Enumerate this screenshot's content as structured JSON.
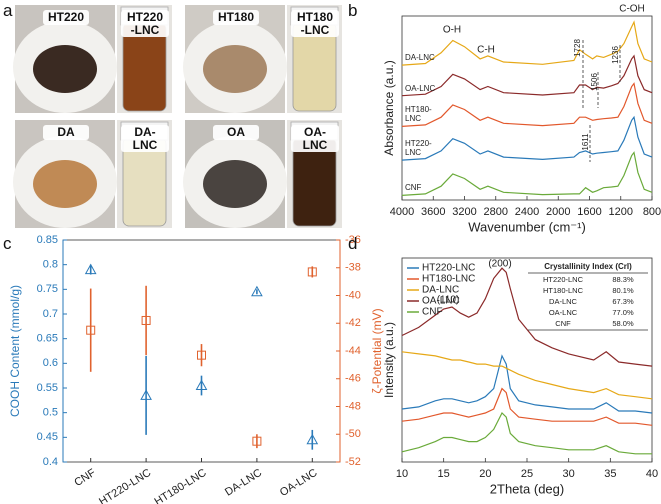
{
  "photos": {
    "panel_label": "a",
    "tiles": [
      {
        "sample": "HT220",
        "vial": "HT220\n-LNC"
      },
      {
        "sample": "HT180",
        "vial": "HT180\n-LNC"
      },
      {
        "sample": "DA",
        "vial": "DA-LNC"
      },
      {
        "sample": "OA",
        "vial": "OA-LNC"
      }
    ]
  },
  "chart_data": [
    {
      "type": "line",
      "panel_label": "b",
      "xlabel": "Wavenumber (cm⁻¹)",
      "ylabel": "Absorbance (a.u.)",
      "x": [
        4000,
        3700,
        3500,
        3350,
        3200,
        3000,
        2900,
        2700,
        2200,
        1800,
        1728,
        1650,
        1560,
        1506,
        1420,
        1320,
        1236,
        1160,
        1060,
        1030,
        980,
        900,
        800
      ],
      "xlim": [
        4000,
        800
      ],
      "xticks": [
        4000,
        3600,
        3200,
        2800,
        2400,
        2000,
        1600,
        1200,
        800
      ],
      "ylim": [
        0,
        12
      ],
      "annotations": [
        "O-H",
        "C-H",
        "1728",
        "1506",
        "1236",
        "C-OH",
        "1611"
      ],
      "series": [
        {
          "name": "CNF",
          "color": "#6aaa3a",
          "values": [
            0.3,
            0.4,
            0.9,
            1.7,
            1.4,
            0.7,
            0.9,
            0.5,
            0.35,
            0.4,
            0.4,
            0.8,
            0.5,
            0.6,
            0.8,
            0.85,
            0.9,
            1.6,
            2.9,
            3.1,
            1.8,
            0.7,
            0.5
          ]
        },
        {
          "name": "HT220-\nLNC",
          "color": "#2a7ab9",
          "values": [
            2.6,
            2.7,
            3.2,
            4.0,
            3.7,
            3.0,
            3.2,
            2.8,
            2.65,
            2.8,
            3.1,
            3.2,
            3.0,
            3.05,
            3.1,
            3.15,
            3.2,
            3.9,
            5.2,
            5.4,
            4.1,
            3.0,
            2.8
          ]
        },
        {
          "name": "HT180-\nLNC",
          "color": "#e2582c",
          "values": [
            4.8,
            4.9,
            5.4,
            6.2,
            5.9,
            5.2,
            5.4,
            5.0,
            4.85,
            5.0,
            5.4,
            5.4,
            5.2,
            5.25,
            5.3,
            5.35,
            5.4,
            6.1,
            7.4,
            7.6,
            6.3,
            5.2,
            5.0
          ]
        },
        {
          "name": "OA-LNC",
          "color": "#8b2a2a",
          "values": [
            6.8,
            6.9,
            7.4,
            8.2,
            7.9,
            7.2,
            7.4,
            7.0,
            6.85,
            7.0,
            7.5,
            7.5,
            7.2,
            7.35,
            7.3,
            7.45,
            7.6,
            8.1,
            9.2,
            9.4,
            8.1,
            7.2,
            7.0
          ]
        },
        {
          "name": "DA-LNC",
          "color": "#e6a817",
          "values": [
            8.8,
            8.9,
            9.6,
            10.4,
            10.0,
            9.2,
            9.4,
            9.0,
            8.85,
            9.1,
            9.8,
            9.5,
            9.2,
            9.4,
            9.3,
            9.5,
            9.7,
            10.2,
            11.3,
            11.6,
            10.2,
            9.2,
            9.0
          ]
        }
      ]
    },
    {
      "type": "errorbar",
      "panel_label": "c",
      "categories": [
        "CNF",
        "HT220-LNC",
        "HT180-LNC",
        "DA-LNC",
        "OA-LNC"
      ],
      "ylabel": "COOH Content (mmol/g)",
      "y2label": "ζ-Potential (mV)",
      "ylim": [
        0.4,
        0.85
      ],
      "yticks": [
        0.4,
        0.45,
        0.5,
        0.55,
        0.6,
        0.65,
        0.7,
        0.75,
        0.8,
        0.85
      ],
      "y2lim": [
        -52,
        -36
      ],
      "y2ticks": [
        -52,
        -50,
        -48,
        -46,
        -44,
        -42,
        -40,
        -38,
        -36
      ],
      "series": [
        {
          "name": "COOH Content",
          "color": "#2a7ab9",
          "marker": "triangle",
          "values": [
            0.79,
            0.535,
            0.555,
            0.745,
            0.445
          ],
          "errors": [
            0.01,
            0.08,
            0.02,
            0.005,
            0.02
          ]
        },
        {
          "name": "ζ-Potential",
          "color": "#e0622e",
          "marker": "square",
          "axis": "y2",
          "values": [
            -42.5,
            -41.8,
            -44.3,
            -50.5,
            -38.3
          ],
          "errors": [
            3,
            2.5,
            0.8,
            0.5,
            0.4
          ]
        }
      ]
    },
    {
      "type": "line",
      "panel_label": "d",
      "xlabel": "2Theta (deg)",
      "ylabel": "Intensity (a.u.)",
      "x": [
        10,
        12,
        14,
        15,
        16,
        17,
        18,
        19,
        20,
        21,
        22,
        22.5,
        23,
        24,
        26,
        28,
        30,
        33,
        34.5,
        36,
        38,
        40
      ],
      "xlim": [
        10,
        40
      ],
      "xticks": [
        10,
        15,
        20,
        25,
        30,
        35,
        40
      ],
      "ylim": [
        0,
        10
      ],
      "legend": "upper left",
      "annotations": [
        "(110)",
        "(200)"
      ],
      "series": [
        {
          "name": "HT220-LNC",
          "color": "#2a7ab9",
          "values": [
            2.6,
            2.7,
            3.0,
            3.1,
            3.1,
            3.0,
            2.9,
            3.0,
            3.2,
            3.6,
            5.2,
            4.8,
            3.6,
            3.0,
            2.8,
            2.7,
            2.6,
            2.6,
            2.9,
            2.5,
            2.5,
            2.4
          ]
        },
        {
          "name": "HT180-LNC",
          "color": "#e2582c",
          "values": [
            2.0,
            2.1,
            2.3,
            2.4,
            2.4,
            2.3,
            2.2,
            2.3,
            2.4,
            2.6,
            3.6,
            3.4,
            2.6,
            2.2,
            2.1,
            2.0,
            2.0,
            2.0,
            2.2,
            1.9,
            1.9,
            1.8
          ]
        },
        {
          "name": "DA-LNC",
          "color": "#e6a817",
          "values": [
            5.4,
            5.3,
            5.2,
            5.1,
            5.0,
            5.0,
            4.9,
            4.8,
            4.8,
            4.7,
            4.7,
            4.6,
            4.5,
            4.3,
            4.0,
            3.8,
            3.6,
            3.4,
            3.6,
            3.3,
            3.2,
            3.1
          ]
        },
        {
          "name": "OA-LNC",
          "color": "#8b2a2a",
          "values": [
            6.2,
            6.6,
            7.2,
            7.5,
            7.6,
            7.3,
            7.1,
            7.3,
            8.0,
            9.0,
            9.5,
            9.3,
            8.5,
            7.0,
            6.0,
            5.6,
            5.3,
            5.0,
            5.4,
            4.9,
            4.8,
            4.7
          ]
        },
        {
          "name": "CNF",
          "color": "#6aaa3a",
          "values": [
            0.5,
            0.7,
            1.0,
            1.2,
            1.2,
            1.1,
            1.0,
            1.0,
            1.2,
            1.6,
            2.4,
            2.2,
            1.4,
            1.0,
            0.8,
            0.7,
            0.6,
            0.6,
            0.8,
            0.5,
            0.4,
            0.4
          ]
        }
      ],
      "inset_table": {
        "header": [
          "Crystallinity Index (CrI)"
        ],
        "rows": [
          [
            "HT220-LNC",
            "88.3%"
          ],
          [
            "HT180-LNC",
            "80.1%"
          ],
          [
            "DA-LNC",
            "67.3%"
          ],
          [
            "OA-LNC",
            "77.0%"
          ],
          [
            "CNF",
            "58.0%"
          ]
        ]
      }
    }
  ]
}
